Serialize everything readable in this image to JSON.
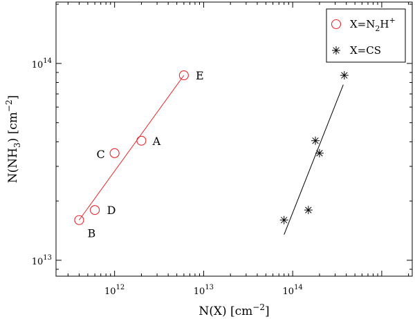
{
  "chart_data": {
    "type": "scatter",
    "xscale": "log",
    "yscale": "log",
    "xlim": [
      220000000000.0,
      2200000000000000.0
    ],
    "ylim": [
      8300000000000.0,
      205000000000000.0
    ],
    "xlabel": {
      "pre": "N(X) [cm",
      "sup": "−2",
      "post": "]"
    },
    "ylabel": {
      "pre": "N(NH",
      "sub": "3",
      "mid": ") [cm",
      "sup": "−2",
      "post": "]"
    },
    "xticks": [
      {
        "value": 1000000000000.0,
        "mantissa": "10",
        "exp": "12"
      },
      {
        "value": 10000000000000.0,
        "mantissa": "10",
        "exp": "13"
      },
      {
        "value": 100000000000000.0,
        "mantissa": "10",
        "exp": "14"
      }
    ],
    "yticks": [
      {
        "value": 10000000000000.0,
        "mantissa": "10",
        "exp": "13"
      },
      {
        "value": 100000000000000.0,
        "mantissa": "10",
        "exp": "14"
      }
    ],
    "series": [
      {
        "name": {
          "pre": "X=N",
          "sub": "2",
          "mid": "H",
          "sup": "+"
        },
        "color": "#e8262b",
        "marker": "circle",
        "points": [
          {
            "x": 2000000000000.0,
            "y": 40500000000000.0,
            "label": "A"
          },
          {
            "x": 400000000000.0,
            "y": 16000000000000.0,
            "label": "B"
          },
          {
            "x": 1000000000000.0,
            "y": 35000000000000.0,
            "label": "C"
          },
          {
            "x": 600000000000.0,
            "y": 18000000000000.0,
            "label": "D"
          },
          {
            "x": 6000000000000.0,
            "y": 87000000000000.0,
            "label": "E"
          }
        ],
        "fit": [
          [
            400000000000.0,
            16000000000000.0
          ],
          [
            6000000000000.0,
            87000000000000.0
          ]
        ]
      },
      {
        "name": {
          "pre": "X=CS",
          "sub": "",
          "mid": "",
          "sup": ""
        },
        "color": "#000000",
        "marker": "asterisk",
        "points": [
          {
            "x": 180000000000000.0,
            "y": 40500000000000.0
          },
          {
            "x": 80000000000000.0,
            "y": 16000000000000.0
          },
          {
            "x": 200000000000000.0,
            "y": 35000000000000.0
          },
          {
            "x": 150000000000000.0,
            "y": 18000000000000.0
          },
          {
            "x": 380000000000000.0,
            "y": 87000000000000.0
          }
        ],
        "fit": [
          [
            80000000000000.0,
            13500000000000.0
          ],
          [
            370000000000000.0,
            78000000000000.0
          ]
        ]
      }
    ],
    "legend_position": "top-right",
    "grid": false
  }
}
